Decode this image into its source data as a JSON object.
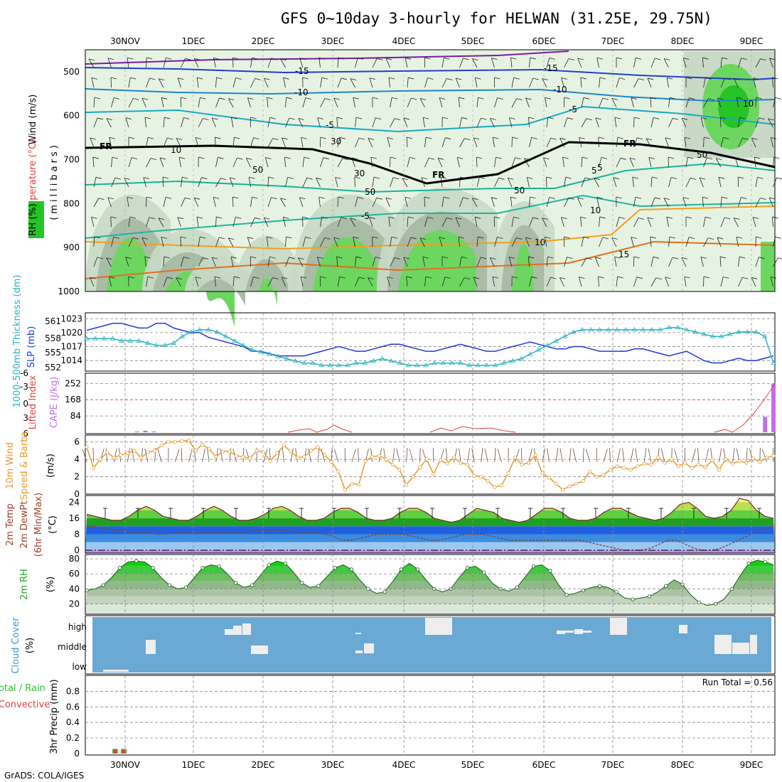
{
  "title": "GFS 0~10day 3-hourly for HELWAN (31.25E, 29.75N)",
  "footer": "GrADS: COLA/IGES",
  "chart_data": {
    "type": "meteogram",
    "days": [
      "30NOV",
      "1DEC",
      "2DEC",
      "3DEC",
      "4DEC",
      "5DEC",
      "6DEC",
      "7DEC",
      "8DEC",
      "9DEC"
    ],
    "colors": {
      "rh_light": "#e6f3e2",
      "rh_mid": "#c8d9c6",
      "rh_dark": "#a8bca6",
      "rh_green": "#6cd660",
      "rh_bright": "#26c426",
      "slp": "#1e3cd8",
      "thickness": "#28b4c0",
      "cape": "#c070e8",
      "lifted": "#e04040",
      "wind": "#e89a30",
      "temp_dark": "#20a020",
      "temp_light": "#60e060",
      "cloud_bg": "#6aa9d4",
      "cloud_patch": "#eeeeee",
      "purple": "#8a2ac0",
      "blue": "#2050e0"
    },
    "upper_panel": {
      "ylabel_wind": "Wind (m/s)",
      "ylabel_temp": "Temperature (°C)",
      "ylabel_rh": "RH (%)",
      "ylabel_mb": "(millibars)",
      "levels": [
        500,
        600,
        700,
        800,
        900,
        1000
      ],
      "isotherm_labels": [
        "-15",
        "-10",
        "-5",
        "5",
        "-5",
        "10",
        "15",
        "-15",
        "-10",
        "-5",
        "5"
      ],
      "freezing_label": "FR",
      "rh_labels": [
        "10",
        "30",
        "50",
        "50",
        "10",
        "50",
        "30",
        "50",
        "10"
      ]
    },
    "pressure_panel": {
      "ylabel": "1000-500mb Thickness (dm)",
      "ylabel2": "SLP (mb)",
      "thickness_ticks": [
        561,
        558,
        555,
        552
      ],
      "slp_ticks": [
        1023,
        1020,
        1017,
        1014
      ],
      "slp_values": [
        1020.5,
        1021,
        1021.5,
        1022,
        1022,
        1021.5,
        1021,
        1021,
        1022,
        1022,
        1021,
        1020.5,
        1020,
        1020,
        1019,
        1018.5,
        1018,
        1017.5,
        1017,
        1016,
        1016,
        1015.5,
        1015,
        1015,
        1015,
        1015,
        1015.5,
        1016,
        1016.5,
        1017,
        1016.5,
        1016,
        1016,
        1016.5,
        1017,
        1017.5,
        1017.5,
        1017,
        1016.5,
        1016,
        1016,
        1016.5,
        1017,
        1017.5,
        1017,
        1016.5,
        1016,
        1016,
        1016.5,
        1017,
        1017.5,
        1018,
        1017.5,
        1017,
        1016.5,
        1016.5,
        1017,
        1017,
        1016.5,
        1016,
        1016,
        1016,
        1016,
        1016.5,
        1016.5,
        1016,
        1015.5,
        1015,
        1015.5,
        1016,
        1015,
        1014,
        1013.5,
        1013.5,
        1014,
        1014.5,
        1014,
        1014,
        1014.5,
        1015
      ],
      "thickness_values": [
        557.5,
        557.5,
        557.5,
        557.5,
        557,
        557,
        557,
        556.5,
        556,
        556,
        556.5,
        558,
        559,
        559.5,
        559.5,
        559,
        558,
        557,
        556,
        555,
        554.5,
        554,
        553.5,
        553,
        552.5,
        552,
        552,
        551.5,
        551.5,
        551.5,
        551.5,
        552,
        552,
        552.5,
        553,
        552.5,
        552,
        551.5,
        551.5,
        551.5,
        552,
        552,
        552,
        552,
        551.5,
        551.5,
        551.5,
        551.5,
        552,
        552.5,
        553,
        554,
        555,
        556,
        557,
        558,
        559,
        559.5,
        559.5,
        559.5,
        559.5,
        559.5,
        559.5,
        559.5,
        559.5,
        559.5,
        559.5,
        560,
        560,
        559.5,
        559,
        558.5,
        558,
        558,
        558.5,
        559,
        559,
        559,
        558,
        552
      ]
    },
    "cape_panel": {
      "ylabel": "Lifted Index",
      "ylabel2": "CAPE (J/kg)",
      "li_ticks": [
        "-6",
        "-3",
        "0",
        "3",
        "6"
      ],
      "cape_ticks": [
        252,
        168,
        84
      ],
      "cape_bars": [
        0,
        0,
        0,
        0,
        0,
        0,
        4,
        8,
        4,
        0,
        0,
        0,
        0,
        0,
        0,
        0,
        0,
        0,
        0,
        0,
        0,
        0,
        0,
        0,
        0,
        0,
        0,
        0,
        0,
        0,
        0,
        0,
        0,
        0,
        0,
        0,
        0,
        0,
        0,
        0,
        0,
        0,
        0,
        0,
        0,
        0,
        0,
        0,
        0,
        0,
        0,
        0,
        0,
        0,
        0,
        0,
        0,
        0,
        0,
        0,
        0,
        0,
        0,
        0,
        0,
        0,
        0,
        0,
        0,
        0,
        0,
        0,
        0,
        0,
        0,
        0,
        0,
        0,
        0,
        0,
        0,
        80,
        250
      ]
    },
    "wind_panel": {
      "ylabel": "10m Wind",
      "ylabel2": "Speed & Barbs",
      "ylabel3": "(m/s)",
      "ticks": [
        6,
        4,
        2,
        0
      ],
      "speed": [
        5.4,
        3.0,
        4.0,
        4.8,
        4.2,
        4.5,
        4.7,
        5.0,
        4.2,
        4.8,
        5.0,
        5.6,
        6.0,
        6.0,
        6.1,
        6.2,
        5.0,
        5.7,
        5.2,
        4.3,
        4.9,
        4.9,
        4.4,
        4.3,
        4.1,
        5.0,
        4.8,
        3.8,
        4.7,
        5.6,
        4.9,
        4.2,
        4.3,
        5.0,
        5.4,
        4.5,
        3.7,
        2.6,
        0.5,
        1.2,
        1.1,
        3.8,
        4.3,
        4.4,
        4.0,
        3.4,
        2.8,
        1.1,
        2.0,
        3.1,
        4.0,
        2.3,
        3.9,
        3.5,
        4.2,
        3.6,
        3.4,
        2.1,
        2.0,
        1.5,
        0.8,
        1.0,
        2.4,
        4.2,
        3.4,
        3.6,
        4.5,
        2.4,
        1.9,
        1.2,
        0.5,
        0.9,
        1.2,
        1.5,
        2.6,
        2.0,
        2.2,
        2.8,
        3.2,
        3.0,
        2.8,
        3.2,
        3.5,
        3.4,
        4.2,
        3.6,
        4.0,
        3.2,
        3.6,
        3.0,
        3.4,
        3.1,
        3.9,
        2.8,
        4.0,
        3.5,
        3.8,
        3.6,
        4.1,
        3.7,
        4.2,
        4.4
      ]
    },
    "temp_panel": {
      "ylabel": "2m Temp",
      "ylabel2": "2m DewPt",
      "ylabel3": "(6hr Min/Max)",
      "ylabel4": "(°C)",
      "ticks": [
        24,
        16,
        8,
        0
      ],
      "temp": [
        18,
        17,
        16,
        15,
        15,
        17,
        20,
        22,
        20,
        17,
        16,
        15,
        15,
        17,
        20,
        22,
        20,
        17,
        15,
        15,
        16,
        18,
        21,
        22,
        20,
        17,
        15,
        15,
        16,
        19,
        21,
        21,
        19,
        16,
        15,
        15,
        16,
        19,
        21,
        21,
        19,
        16,
        15,
        14,
        15,
        18,
        21,
        20,
        19,
        16,
        15,
        14,
        15,
        18,
        21,
        21,
        19,
        16,
        15,
        15,
        16,
        19,
        21,
        21,
        19,
        17,
        16,
        15,
        16,
        19,
        23,
        24,
        21,
        17,
        16,
        17,
        20,
        26,
        25,
        20,
        17,
        16
      ],
      "dewpt": [
        12,
        12,
        11,
        10,
        10,
        9,
        9,
        9,
        8,
        8,
        9,
        9,
        9,
        9,
        9,
        9,
        9,
        9,
        9,
        10,
        10,
        10,
        10,
        10,
        9,
        9,
        9,
        8,
        7,
        5,
        5,
        6,
        7,
        8,
        8,
        8,
        8,
        7,
        6,
        5,
        5,
        6,
        7,
        8,
        8,
        8,
        7,
        6,
        5,
        5,
        5,
        5,
        5,
        5,
        5,
        5,
        5,
        4,
        3,
        2,
        1,
        0,
        0,
        0,
        1,
        3,
        5,
        5,
        3,
        1,
        0,
        0,
        1,
        3,
        5,
        7,
        9,
        11,
        12
      ]
    },
    "rh_panel": {
      "ylabel": "2m RH",
      "ylabel2": "(%)",
      "ticks": [
        80,
        60,
        40,
        20
      ],
      "values": [
        38,
        40,
        45,
        55,
        68,
        76,
        77,
        76,
        68,
        55,
        45,
        40,
        42,
        55,
        68,
        72,
        70,
        60,
        48,
        42,
        45,
        58,
        72,
        77,
        74,
        62,
        48,
        42,
        44,
        56,
        68,
        72,
        66,
        52,
        40,
        34,
        36,
        50,
        66,
        74,
        66,
        52,
        40,
        36,
        40,
        55,
        68,
        70,
        62,
        48,
        40,
        37,
        42,
        56,
        70,
        72,
        64,
        46,
        32,
        34,
        38,
        42,
        44,
        42,
        36,
        28,
        26,
        28,
        30,
        36,
        44,
        52,
        46,
        32,
        22,
        18,
        20,
        26,
        40,
        58,
        74,
        78,
        76,
        72
      ]
    },
    "cloud_panel": {
      "ylabel": "Cloud Cover",
      "ylabel2": "(%)",
      "levels": [
        "high",
        "middle",
        "low"
      ]
    },
    "precip_panel": {
      "ylabel": "3hr Precip (mm)",
      "ylabel2": "Total / Rain",
      "ylabel3": "Convective",
      "ticks": [
        "0.8",
        "0.6",
        "0.4",
        "0.2",
        "0"
      ],
      "run_total": "Run Total = 0.56",
      "bars": [
        0,
        0,
        0,
        0,
        0,
        0,
        0,
        0.06,
        0.06,
        0.06
      ]
    }
  }
}
